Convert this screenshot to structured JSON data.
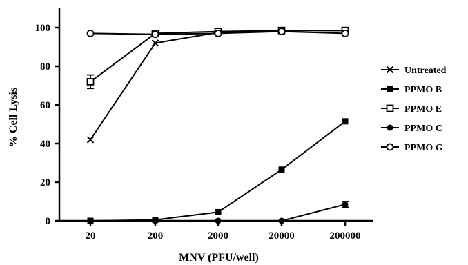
{
  "chart_data": {
    "type": "line",
    "title": "",
    "xlabel": "MNV (PFU/well)",
    "ylabel": "% Cell Lysis",
    "categories": [
      "20",
      "200",
      "2000",
      "20000",
      "200000"
    ],
    "x_scale": "log",
    "ylim": [
      0,
      100
    ],
    "yticks": [
      0,
      20,
      40,
      60,
      80,
      100
    ],
    "grid": false,
    "legend_position": "right",
    "series": [
      {
        "name": "Untreated",
        "marker": "x",
        "values": [
          42,
          92,
          97.5,
          98.5,
          98.5
        ],
        "err": [
          0,
          0,
          0,
          0,
          0
        ]
      },
      {
        "name": "PPMO B",
        "marker": "square-filled",
        "values": [
          0,
          0.5,
          4.5,
          26.5,
          51.5
        ],
        "err": [
          0,
          0,
          0,
          0,
          0
        ]
      },
      {
        "name": "PPMO E",
        "marker": "square-open",
        "values": [
          72,
          97,
          98,
          98.5,
          98.5
        ],
        "err": [
          3.5,
          0,
          0,
          0,
          0
        ]
      },
      {
        "name": "PPMO C",
        "marker": "circle-filled",
        "values": [
          0,
          0,
          0,
          0,
          8.5
        ],
        "err": [
          0,
          0,
          0,
          0,
          1.5
        ]
      },
      {
        "name": "PPMO G",
        "marker": "circle-open",
        "values": [
          97,
          96.5,
          97,
          98,
          97
        ],
        "err": [
          0,
          0,
          0,
          0,
          0
        ]
      }
    ]
  }
}
